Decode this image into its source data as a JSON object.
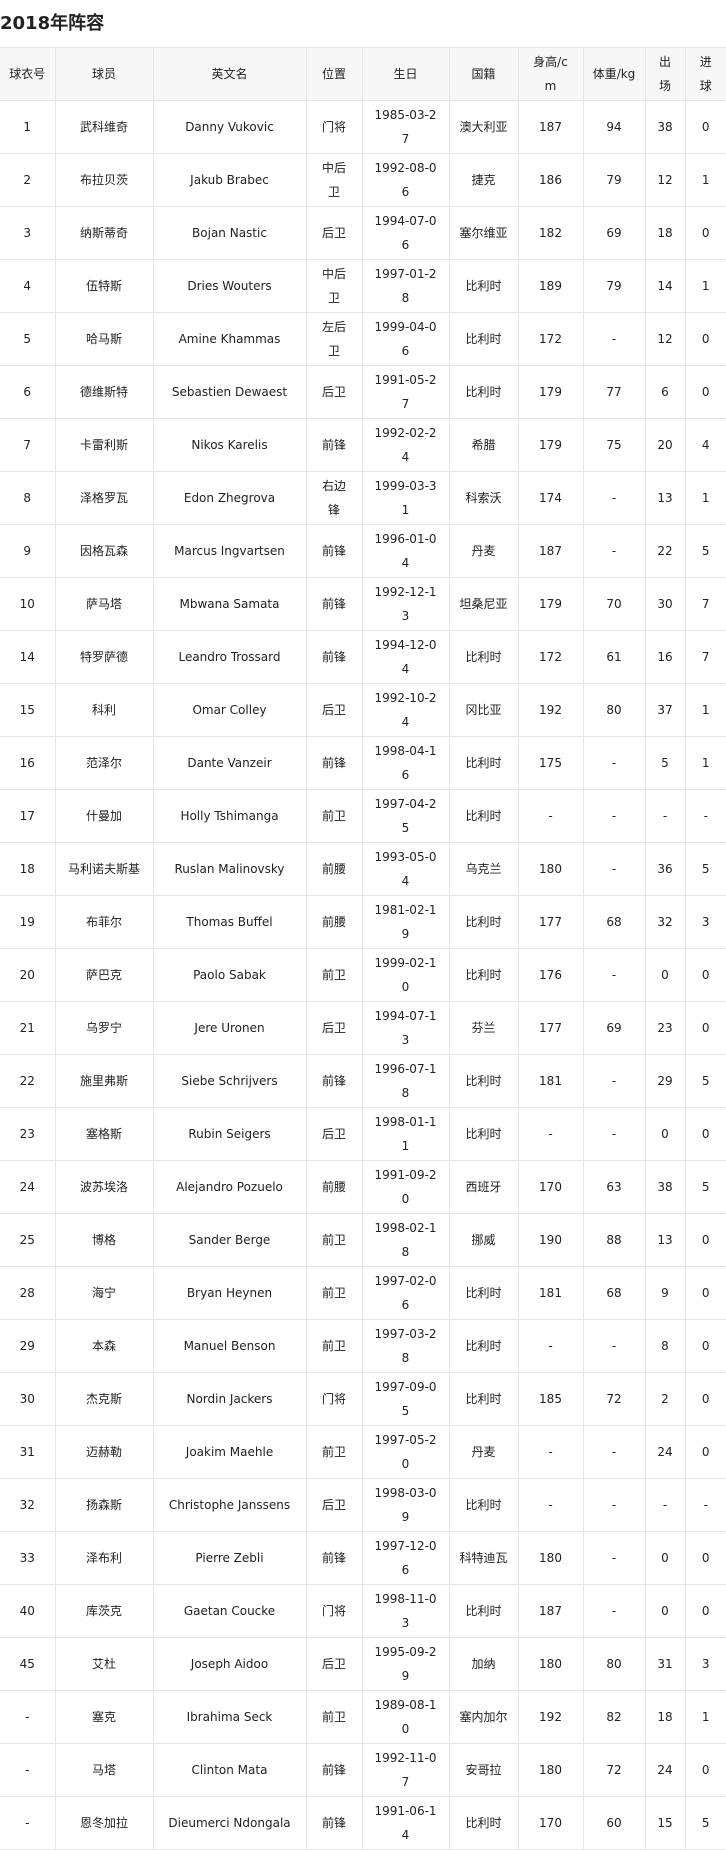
{
  "header": {
    "title": "2018年阵容"
  },
  "table": {
    "columns": [
      "球衣号",
      "球员",
      "英文名",
      "位置",
      "生日",
      "国籍",
      "身高/cm",
      "体重/kg",
      "出场",
      "进球"
    ],
    "rows": [
      [
        "1",
        "武科维奇",
        "Danny Vukovic",
        "门将",
        "1985-03-27",
        "澳大利亚",
        "187",
        "94",
        "38",
        "0"
      ],
      [
        "2",
        "布拉贝茨",
        "Jakub Brabec",
        "中后卫",
        "1992-08-06",
        "捷克",
        "186",
        "79",
        "12",
        "1"
      ],
      [
        "3",
        "纳斯蒂奇",
        "Bojan Nastic",
        "后卫",
        "1994-07-06",
        "塞尔维亚",
        "182",
        "69",
        "18",
        "0"
      ],
      [
        "4",
        "伍特斯",
        "Dries Wouters",
        "中后卫",
        "1997-01-28",
        "比利时",
        "189",
        "79",
        "14",
        "1"
      ],
      [
        "5",
        "哈马斯",
        "Amine Khammas",
        "左后卫",
        "1999-04-06",
        "比利时",
        "172",
        "-",
        "12",
        "0"
      ],
      [
        "6",
        "德维斯特",
        "Sebastien Dewaest",
        "后卫",
        "1991-05-27",
        "比利时",
        "179",
        "77",
        "6",
        "0"
      ],
      [
        "7",
        "卡雷利斯",
        "Nikos Karelis",
        "前锋",
        "1992-02-24",
        "希腊",
        "179",
        "75",
        "20",
        "4"
      ],
      [
        "8",
        "泽格罗瓦",
        "Edon Zhegrova",
        "右边锋",
        "1999-03-31",
        "科索沃",
        "174",
        "-",
        "13",
        "1"
      ],
      [
        "9",
        "因格瓦森",
        "Marcus Ingvartsen",
        "前锋",
        "1996-01-04",
        "丹麦",
        "187",
        "-",
        "22",
        "5"
      ],
      [
        "10",
        "萨马塔",
        "Mbwana Samata",
        "前锋",
        "1992-12-13",
        "坦桑尼亚",
        "179",
        "70",
        "30",
        "7"
      ],
      [
        "14",
        "特罗萨德",
        "Leandro Trossard",
        "前锋",
        "1994-12-04",
        "比利时",
        "172",
        "61",
        "16",
        "7"
      ],
      [
        "15",
        "科利",
        "Omar Colley",
        "后卫",
        "1992-10-24",
        "冈比亚",
        "192",
        "80",
        "37",
        "1"
      ],
      [
        "16",
        "范泽尔",
        "Dante Vanzeir",
        "前锋",
        "1998-04-16",
        "比利时",
        "175",
        "-",
        "5",
        "1"
      ],
      [
        "17",
        "什曼加",
        "Holly Tshimanga",
        "前卫",
        "1997-04-25",
        "比利时",
        "-",
        "-",
        "-",
        "-"
      ],
      [
        "18",
        "马利诺夫斯基",
        "Ruslan Malinovsky",
        "前腰",
        "1993-05-04",
        "乌克兰",
        "180",
        "-",
        "36",
        "5"
      ],
      [
        "19",
        "布菲尔",
        "Thomas Buffel",
        "前腰",
        "1981-02-19",
        "比利时",
        "177",
        "68",
        "32",
        "3"
      ],
      [
        "20",
        "萨巴克",
        "Paolo Sabak",
        "前卫",
        "1999-02-10",
        "比利时",
        "176",
        "-",
        "0",
        "0"
      ],
      [
        "21",
        "乌罗宁",
        "Jere Uronen",
        "后卫",
        "1994-07-13",
        "芬兰",
        "177",
        "69",
        "23",
        "0"
      ],
      [
        "22",
        "施里弗斯",
        "Siebe Schrijvers",
        "前锋",
        "1996-07-18",
        "比利时",
        "181",
        "-",
        "29",
        "5"
      ],
      [
        "23",
        "塞格斯",
        "Rubin Seigers",
        "后卫",
        "1998-01-11",
        "比利时",
        "-",
        "-",
        "0",
        "0"
      ],
      [
        "24",
        "波苏埃洛",
        "Alejandro Pozuelo",
        "前腰",
        "1991-09-20",
        "西班牙",
        "170",
        "63",
        "38",
        "5"
      ],
      [
        "25",
        "博格",
        "Sander Berge",
        "前卫",
        "1998-02-18",
        "挪威",
        "190",
        "88",
        "13",
        "0"
      ],
      [
        "28",
        "海宁",
        "Bryan Heynen",
        "前卫",
        "1997-02-06",
        "比利时",
        "181",
        "68",
        "9",
        "0"
      ],
      [
        "29",
        "本森",
        "Manuel Benson",
        "前卫",
        "1997-03-28",
        "比利时",
        "-",
        "-",
        "8",
        "0"
      ],
      [
        "30",
        "杰克斯",
        "Nordin Jackers",
        "门将",
        "1997-09-05",
        "比利时",
        "185",
        "72",
        "2",
        "0"
      ],
      [
        "31",
        "迈赫勒",
        "Joakim Maehle",
        "前卫",
        "1997-05-20",
        "丹麦",
        "-",
        "-",
        "24",
        "0"
      ],
      [
        "32",
        "扬森斯",
        "Christophe Janssens",
        "后卫",
        "1998-03-09",
        "比利时",
        "-",
        "-",
        "-",
        "-"
      ],
      [
        "33",
        "泽布利",
        "Pierre Zebli",
        "前锋",
        "1997-12-06",
        "科特迪瓦",
        "180",
        "-",
        "0",
        "0"
      ],
      [
        "40",
        "库茨克",
        "Gaetan Coucke",
        "门将",
        "1998-11-03",
        "比利时",
        "187",
        "-",
        "0",
        "0"
      ],
      [
        "45",
        "艾杜",
        "Joseph Aidoo",
        "后卫",
        "1995-09-29",
        "加纳",
        "180",
        "80",
        "31",
        "3"
      ],
      [
        "-",
        "塞克",
        "Ibrahima Seck",
        "前卫",
        "1989-08-10",
        "塞内加尔",
        "192",
        "82",
        "18",
        "1"
      ],
      [
        "-",
        "马塔",
        "Clinton Mata",
        "前锋",
        "1992-11-07",
        "安哥拉",
        "180",
        "72",
        "24",
        "0"
      ],
      [
        "-",
        "恩冬加拉",
        "Dieumerci Ndongala",
        "前锋",
        "1991-06-14",
        "比利时",
        "170",
        "60",
        "15",
        "5"
      ]
    ]
  }
}
